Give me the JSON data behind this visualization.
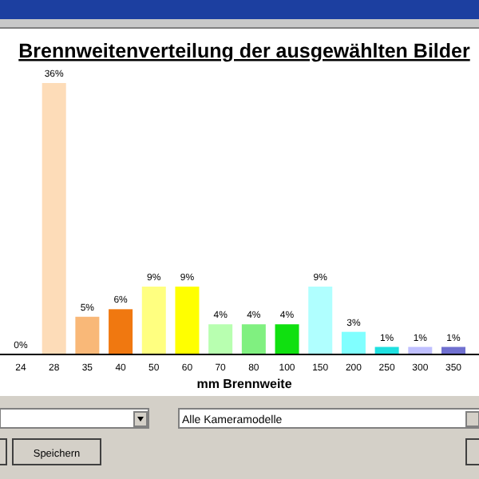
{
  "chart_data": {
    "type": "bar",
    "title": "Brennweitenverteilung der ausgewählten Bilder",
    "xlabel": "mm Brennweite",
    "categories": [
      "24",
      "28",
      "35",
      "40",
      "50",
      "60",
      "70",
      "80",
      "100",
      "150",
      "200",
      "250",
      "300",
      "350"
    ],
    "values": [
      0,
      36,
      5,
      6,
      9,
      9,
      4,
      4,
      4,
      9,
      3,
      1,
      1,
      1
    ],
    "value_labels": [
      "0%",
      "36%",
      "5%",
      "6%",
      "9%",
      "9%",
      "4%",
      "4%",
      "4%",
      "9%",
      "3%",
      "1%",
      "1%",
      "1%"
    ],
    "colors": [
      "#993333",
      "#fddcb8",
      "#f9b878",
      "#f07810",
      "#ffff80",
      "#ffff00",
      "#b8ffb0",
      "#80f080",
      "#10e010",
      "#b0ffff",
      "#80ffff",
      "#20e0e0",
      "#c0c0ff",
      "#7070d0"
    ],
    "annotations": [
      "Alle Kameramodelle",
      "Speichern"
    ]
  }
}
